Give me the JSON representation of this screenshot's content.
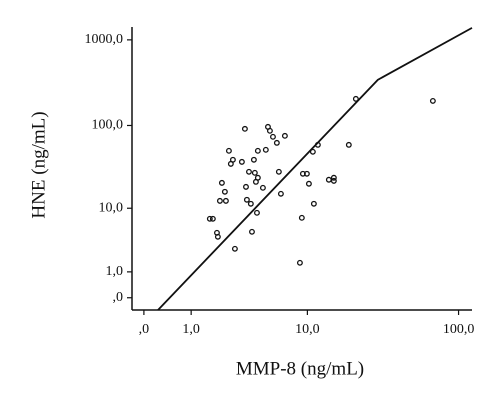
{
  "chart_data": {
    "type": "scatter",
    "x_label": "MMP-8 (ng/mL)",
    "y_label": "HNE (ng/mL)",
    "xscale": "log1p",
    "yscale": "log1p",
    "xlim": [
      -0.16,
      122
    ],
    "ylim": [
      -0.28,
      1412
    ],
    "xticks": [
      {
        "value": 0,
        "label": ",0"
      },
      {
        "value": 1,
        "label": "1,0"
      },
      {
        "value": 10,
        "label": "10,0"
      },
      {
        "value": 100,
        "label": "100,0"
      }
    ],
    "yticks": [
      {
        "value": 0,
        "label": ",0"
      },
      {
        "value": 1,
        "label": "1,0"
      },
      {
        "value": 10,
        "label": "10,0"
      },
      {
        "value": 100,
        "label": "100,0"
      },
      {
        "value": 1000,
        "label": "1000,0"
      }
    ],
    "points": {
      "color": "#111111",
      "x": [
        1.63,
        1.75,
        1.92,
        1.96,
        2.05,
        2.14,
        2.28,
        2.33,
        2.48,
        2.58,
        2.69,
        2.8,
        3.21,
        3.4,
        3.47,
        3.53,
        3.67,
        3.8,
        3.88,
        4.02,
        4.09,
        4.17,
        4.25,
        4.32,
        4.32,
        4.73,
        4.98,
        5.17,
        5.35,
        5.64,
        6.03,
        6.24,
        6.46,
        6.91,
        8.86,
        9.14,
        9.3,
        9.92,
        10.25,
        10.92,
        11.1,
        11.83,
        14.07,
        15.22,
        15.22,
        19.2,
        21.4,
        68.3
      ],
      "y": [
        7.29,
        7.29,
        4.7,
        4.12,
        12.4,
        20.7,
        16.1,
        12.4,
        50.2,
        35.1,
        39.3,
        2.71,
        37.1,
        91.3,
        18.5,
        12.8,
        28.2,
        11.4,
        4.85,
        39.3,
        27.4,
        21.3,
        8.73,
        50.2,
        23.9,
        18.0,
        51.6,
        96.3,
        86.5,
        73.5,
        62.4,
        28.2,
        15.2,
        75.5,
        1.55,
        7.51,
        26.7,
        26.7,
        20.2,
        48.9,
        11.4,
        59.1,
        22.6,
        21.9,
        23.9,
        59.1,
        205,
        194
      ]
    },
    "line": {
      "color": "#111111",
      "x": [
        0.23,
        29.9,
        122
      ],
      "y": [
        -0.28,
        342,
        1379
      ]
    }
  }
}
